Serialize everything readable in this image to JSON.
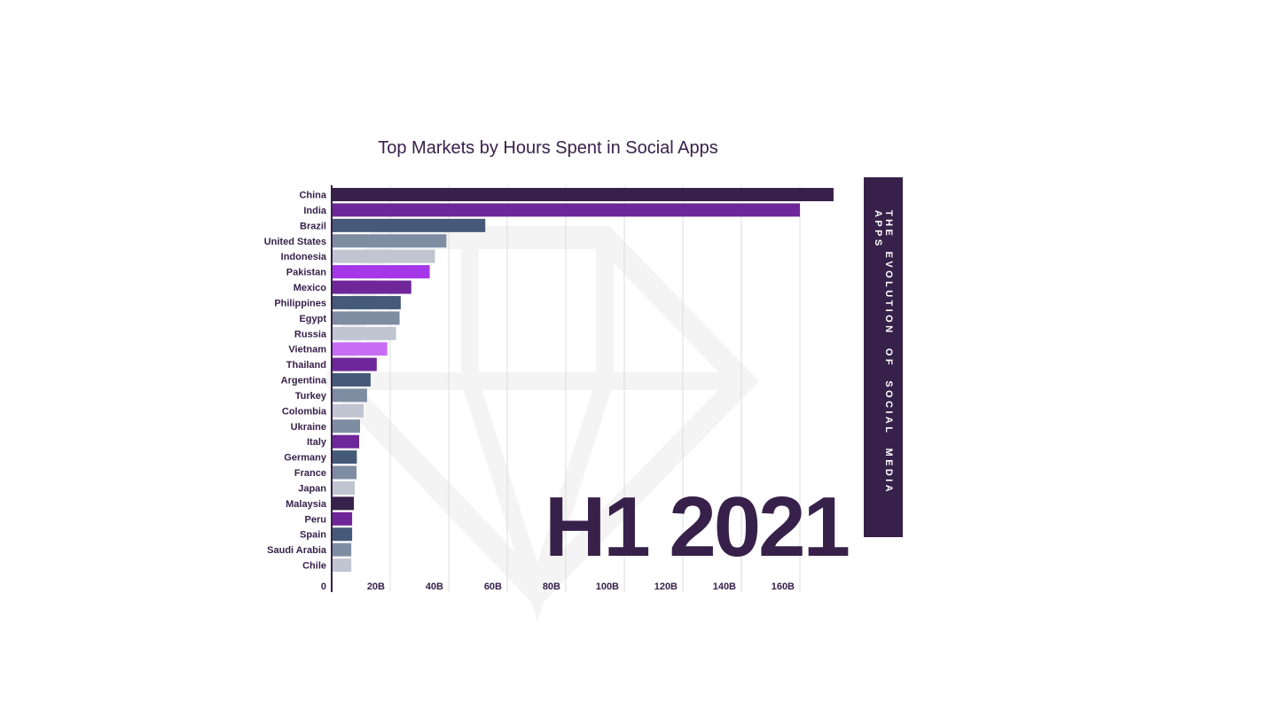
{
  "chart_data": {
    "type": "bar",
    "orientation": "horizontal",
    "title": "Top Markets by Hours Spent in Social Apps",
    "period": "H1 2021",
    "categories": [
      "China",
      "India",
      "Brazil",
      "United States",
      "Indonesia",
      "Pakistan",
      "Mexico",
      "Philippines",
      "Egypt",
      "Russia",
      "Vietnam",
      "Thailand",
      "Argentina",
      "Turkey",
      "Colombia",
      "Ukraine",
      "Italy",
      "Germany",
      "France",
      "Japan",
      "Malaysia",
      "Peru",
      "Spain",
      "Saudi Arabia",
      "Chile"
    ],
    "values": [
      171.5,
      160,
      52.5,
      39.2,
      35.3,
      33.5,
      27.2,
      23.6,
      23.2,
      22,
      19,
      15.4,
      13.3,
      12.1,
      10.9,
      9.7,
      9.4,
      8.6,
      8.5,
      7.9,
      7.6,
      7,
      7,
      6.7,
      6.7
    ],
    "colors": [
      "#37214a",
      "#6f2699",
      "#445a78",
      "#7f8da3",
      "#c0c5d1",
      "#a537e8",
      "#6f2699",
      "#445a78",
      "#7f8da3",
      "#c0c5d1",
      "#c86cf5",
      "#6f2699",
      "#445a78",
      "#7f8da3",
      "#c0c5d1",
      "#7f8da3",
      "#6f2699",
      "#445a78",
      "#7f8da3",
      "#c0c5d1",
      "#37214a",
      "#6f2699",
      "#445a78",
      "#7f8da3",
      "#c0c5d1"
    ],
    "xticks": [
      0,
      20,
      40,
      60,
      80,
      100,
      120,
      140,
      160
    ],
    "xtick_labels": [
      "0",
      "20B",
      "40B",
      "60B",
      "80B",
      "100B",
      "120B",
      "140B",
      "160B"
    ],
    "xlim": [
      0,
      172
    ],
    "grid": true,
    "unit": "hours"
  },
  "side_banner": "THE EVOLUTION OF SOCIAL MEDIA APPS"
}
